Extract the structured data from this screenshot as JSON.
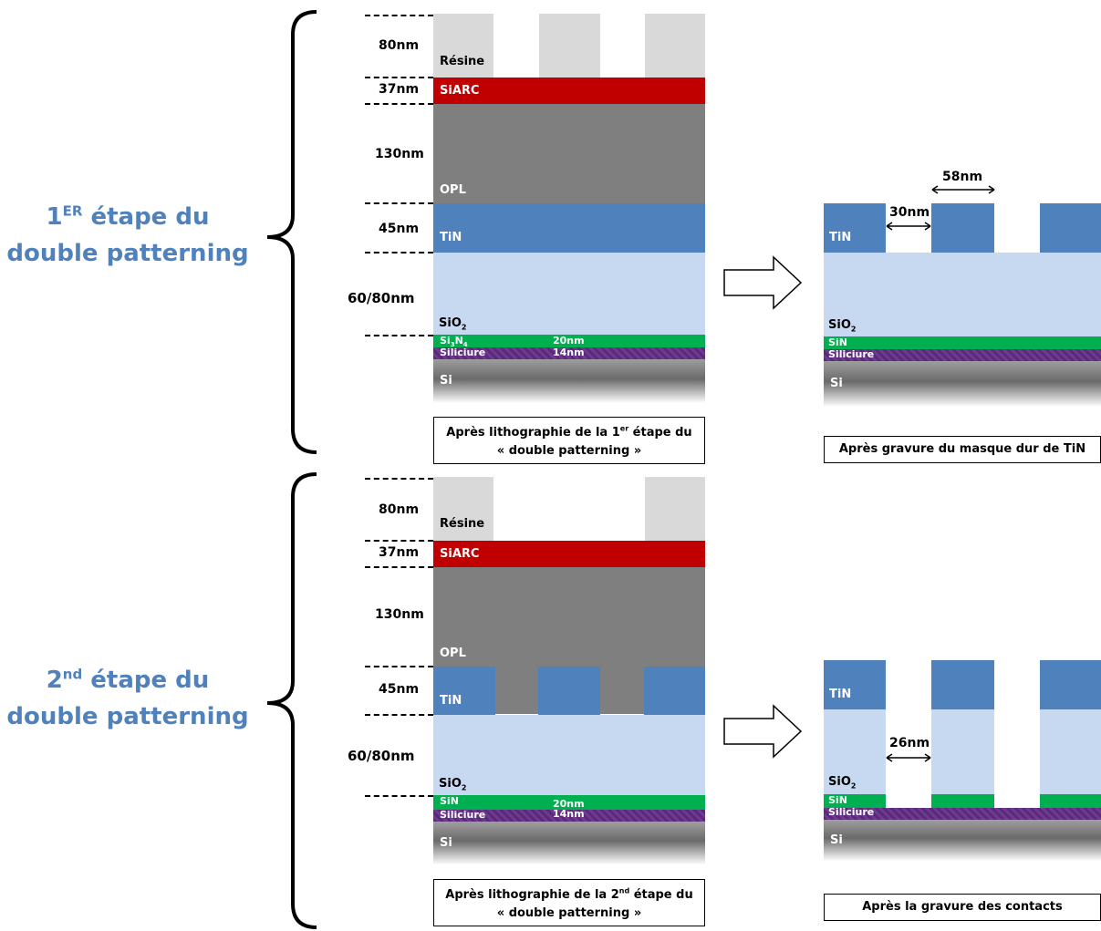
{
  "step1": {
    "title_prefix": "1",
    "title_sup": "ER",
    "title_rest": " étape du",
    "title_line2": "double patterning",
    "dims": [
      "80nm",
      "37nm",
      "130nm",
      "45nm",
      "60/80nm"
    ],
    "layers": {
      "resine": "Résine",
      "siarc": "SiARC",
      "opl": "OPL",
      "tin": "TiN",
      "sio2": "SiO",
      "sio2_sub": "2",
      "si3n4": "Si",
      "si3n4_sub1": "3",
      "si3n4_mid": "N",
      "si3n4_sub2": "4",
      "sin_thick": "20nm",
      "siliciure": "Siliciure",
      "siliciure_thick": "14nm",
      "si": "Si"
    },
    "caption_line1_a": "Après lithographie de la 1",
    "caption_line1_sup": "er",
    "caption_line1_b": " étape du",
    "caption_line2": "« double patterning »",
    "result": {
      "tin": "TiN",
      "sio2": "SiO",
      "sio2_sub": "2",
      "sin": "SiN",
      "siliciure": "Siliciure",
      "si": "Si",
      "space_dim": "30nm",
      "line_dim": "58nm",
      "caption": "Après gravure du masque dur de TiN"
    }
  },
  "step2": {
    "title_prefix": "2",
    "title_sup": "nd",
    "title_rest": " étape du",
    "title_line2": "double patterning",
    "dims": [
      "80nm",
      "37nm",
      "130nm",
      "45nm",
      "60/80nm"
    ],
    "layers": {
      "resine": "Résine",
      "siarc": "SiARC",
      "opl": "OPL",
      "tin": "TiN",
      "sio2": "SiO",
      "sio2_sub": "2",
      "sin": "SiN",
      "sin_thick": "20nm",
      "siliciure": "Siliciure",
      "siliciure_thick": "14nm",
      "si": "Si"
    },
    "caption_line1_a": "Après lithographie de la 2",
    "caption_line1_sup": "nd",
    "caption_line1_b": " étape du",
    "caption_line2": "« double patterning »",
    "result": {
      "tin": "TiN",
      "sio2": "SiO",
      "sio2_sub": "2",
      "sin": "SiN",
      "siliciure": "Siliciure",
      "si": "Si",
      "contact_dim": "26nm",
      "caption": "Après la gravure des contacts"
    }
  },
  "colors": {
    "title": "#4f81bd",
    "resine": "#d9d9d9",
    "siarc": "#c00000",
    "opl": "#7f7f7f",
    "tin": "#4f81bd",
    "sio2": "#c6d9f1",
    "sin": "#00b050",
    "siliciure": "#5a2a7a"
  }
}
